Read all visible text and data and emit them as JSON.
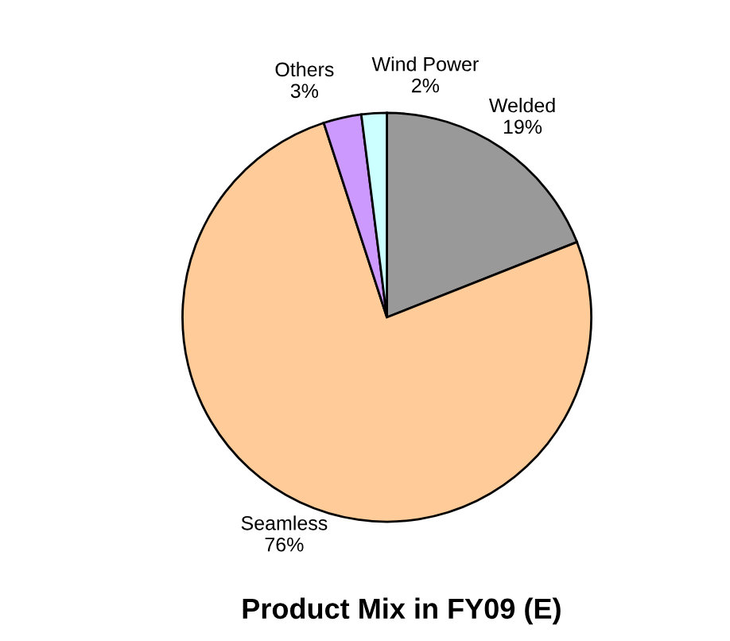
{
  "chart_data": {
    "type": "pie",
    "title": "Product Mix in FY09 (E)",
    "categories": [
      "Welded",
      "Seamless",
      "Others",
      "Wind Power"
    ],
    "values": [
      19,
      76,
      3,
      2
    ],
    "value_labels": [
      "19%",
      "76%",
      "3%",
      "2%"
    ],
    "colors": [
      "#999999",
      "#ffcc99",
      "#cc99ff",
      "#ccffff"
    ],
    "legend": false
  }
}
